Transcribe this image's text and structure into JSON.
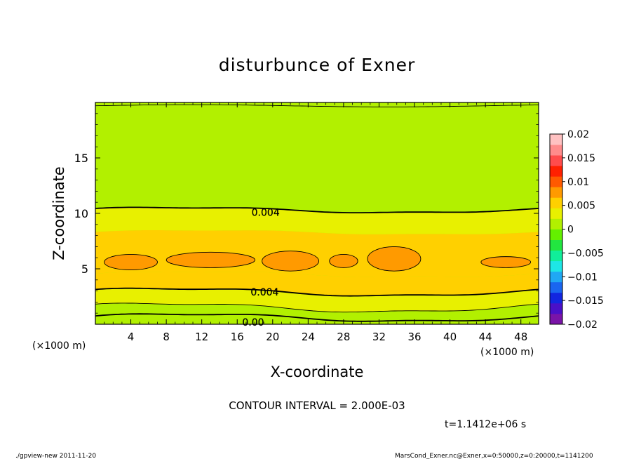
{
  "chart_data": {
    "type": "heatmap",
    "title": "disturbunce of Exner",
    "xlabel": "X-coordinate",
    "ylabel": "Z-coordinate",
    "x_unit_label": "(×1000 m)",
    "xlim": [
      0,
      50
    ],
    "ylim": [
      0,
      20
    ],
    "x_ticks": [
      "4",
      "8",
      "12",
      "16",
      "20",
      "24",
      "28",
      "32",
      "36",
      "40",
      "44",
      "48"
    ],
    "x_tick_values": [
      4,
      8,
      12,
      16,
      20,
      24,
      28,
      32,
      36,
      40,
      44,
      48
    ],
    "y_ticks": [
      "5",
      "10",
      "15"
    ],
    "y_tick_values": [
      5,
      10,
      15
    ],
    "colorbar": {
      "min": -0.02,
      "max": 0.02,
      "labels": [
        "0.02",
        "0.015",
        "0.01",
        "0.005",
        "0",
        "−0.005",
        "−0.01",
        "−0.015",
        "−0.02"
      ],
      "label_values": [
        0.02,
        0.015,
        0.01,
        0.005,
        0,
        -0.005,
        -0.01,
        -0.015,
        -0.02
      ],
      "colors": [
        "#7a14a8",
        "#4a10c8",
        "#1226e0",
        "#1a66f0",
        "#20a8f4",
        "#1ee6e6",
        "#10ee9a",
        "#22e640",
        "#64f000",
        "#b2f000",
        "#e8f000",
        "#ffd000",
        "#ff9a00",
        "#ff5a00",
        "#ff2000",
        "#ff4c4c",
        "#ff8c8c",
        "#ffc2c2"
      ]
    },
    "contour_interval_text": "CONTOUR INTERVAL = 2.000E-03",
    "contour_labels": [
      {
        "text": "0.004",
        "x": 19.2,
        "y": 10.1
      },
      {
        "text": "0.004",
        "x": 19.1,
        "y": 2.9
      },
      {
        "text": "0.00",
        "x": 17.8,
        "y": 0.2
      }
    ],
    "time_text": "t=1.1412e+06 s",
    "footer_left": "./gpview-new  2011-11-20",
    "footer_right": "MarsCond_Exner.nc@Exner,x=0:50000,z=0:20000,t=1141200"
  }
}
